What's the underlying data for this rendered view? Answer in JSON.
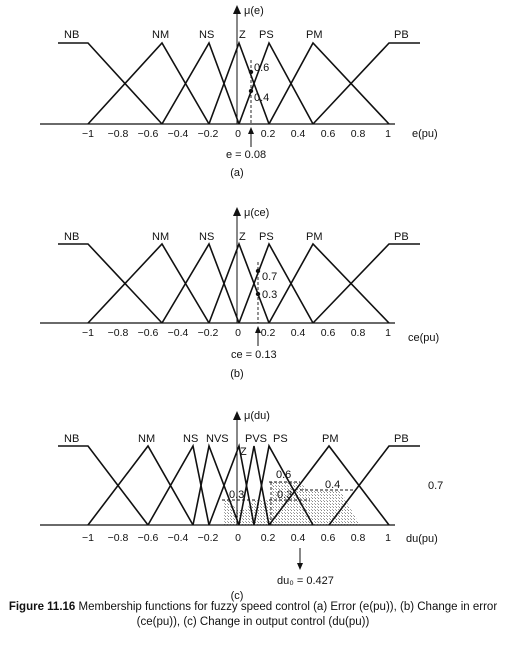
{
  "panels": [
    {
      "id": "a",
      "yaxis_label": "μ(e)",
      "xaxis_label": "e(pu)",
      "sets": [
        "NB",
        "NM",
        "NS",
        "Z",
        "PS",
        "PM",
        "PB"
      ],
      "ticks": [
        "−1",
        "−0.8",
        "−0.6",
        "−0.4",
        "−0.2",
        "0",
        "0.2",
        "0.4",
        "0.6",
        "0.8",
        "1"
      ],
      "memberships": [
        "0.6",
        "0.4"
      ],
      "input_label": "e = 0.08",
      "sublabel": "(a)"
    },
    {
      "id": "b",
      "yaxis_label": "μ(ce)",
      "xaxis_label": "ce(pu)",
      "sets": [
        "NB",
        "NM",
        "NS",
        "Z",
        "PS",
        "PM",
        "PB"
      ],
      "ticks": [
        "−1",
        "−0.8",
        "−0.6",
        "−0.4",
        "−0.2",
        "0",
        "0.2",
        "0.4",
        "0.6",
        "0.8",
        "1"
      ],
      "memberships": [
        "0.7",
        "0.3"
      ],
      "input_label": "ce = 0.13",
      "sublabel": "(b)"
    },
    {
      "id": "c",
      "yaxis_label": "μ(du)",
      "xaxis_label": "du(pu)",
      "sets": [
        "NB",
        "NM",
        "NS",
        "NVS",
        "Z",
        "PVS",
        "PS",
        "PM",
        "PB"
      ],
      "ticks": [
        "−1",
        "−0.8",
        "−0.6",
        "−0.4",
        "−0.2",
        "0",
        "0.2",
        "0.4",
        "0.6",
        "0.8",
        "1"
      ],
      "clip_labels": [
        "0.6",
        "0.4",
        "0.3",
        "0.3",
        "0.7"
      ],
      "output_label": "du₀ = 0.427",
      "sublabel": "(c)"
    }
  ],
  "caption": {
    "lead": "Figure 11.16",
    "text": "Membership functions for fuzzy speed control (a) Error (e(pu)), (b) Change in error (ce(pu)), (c) Change in output control (du(pu))"
  }
}
